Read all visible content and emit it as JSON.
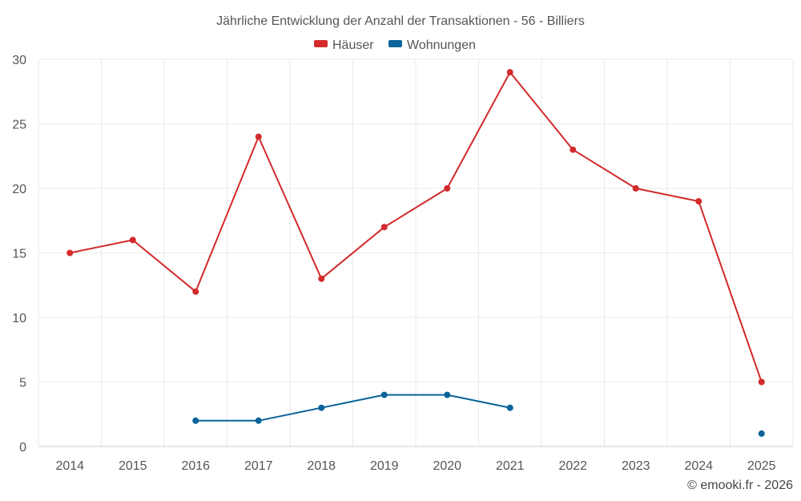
{
  "chart_data": {
    "type": "line",
    "title": "Jährliche Entwicklung der Anzahl der Transaktionen - 56 - Billiers",
    "xlabel": "",
    "ylabel": "",
    "categories": [
      "2014",
      "2015",
      "2016",
      "2017",
      "2018",
      "2019",
      "2020",
      "2021",
      "2022",
      "2023",
      "2024",
      "2025"
    ],
    "ylim": [
      0,
      30
    ],
    "yticks": [
      0,
      5,
      10,
      15,
      20,
      25,
      30
    ],
    "grid": true,
    "legend_position": "top-center",
    "series": [
      {
        "name": "Häuser",
        "color": "#d32a2b",
        "values": [
          15,
          16,
          12,
          24,
          13,
          17,
          20,
          29,
          23,
          20,
          19,
          5
        ]
      },
      {
        "name": "Wohnungen",
        "color": "#0a6399",
        "values": [
          null,
          null,
          2,
          2,
          3,
          4,
          4,
          3,
          null,
          null,
          null,
          1
        ]
      }
    ],
    "credit": "© emooki.fr - 2026"
  }
}
